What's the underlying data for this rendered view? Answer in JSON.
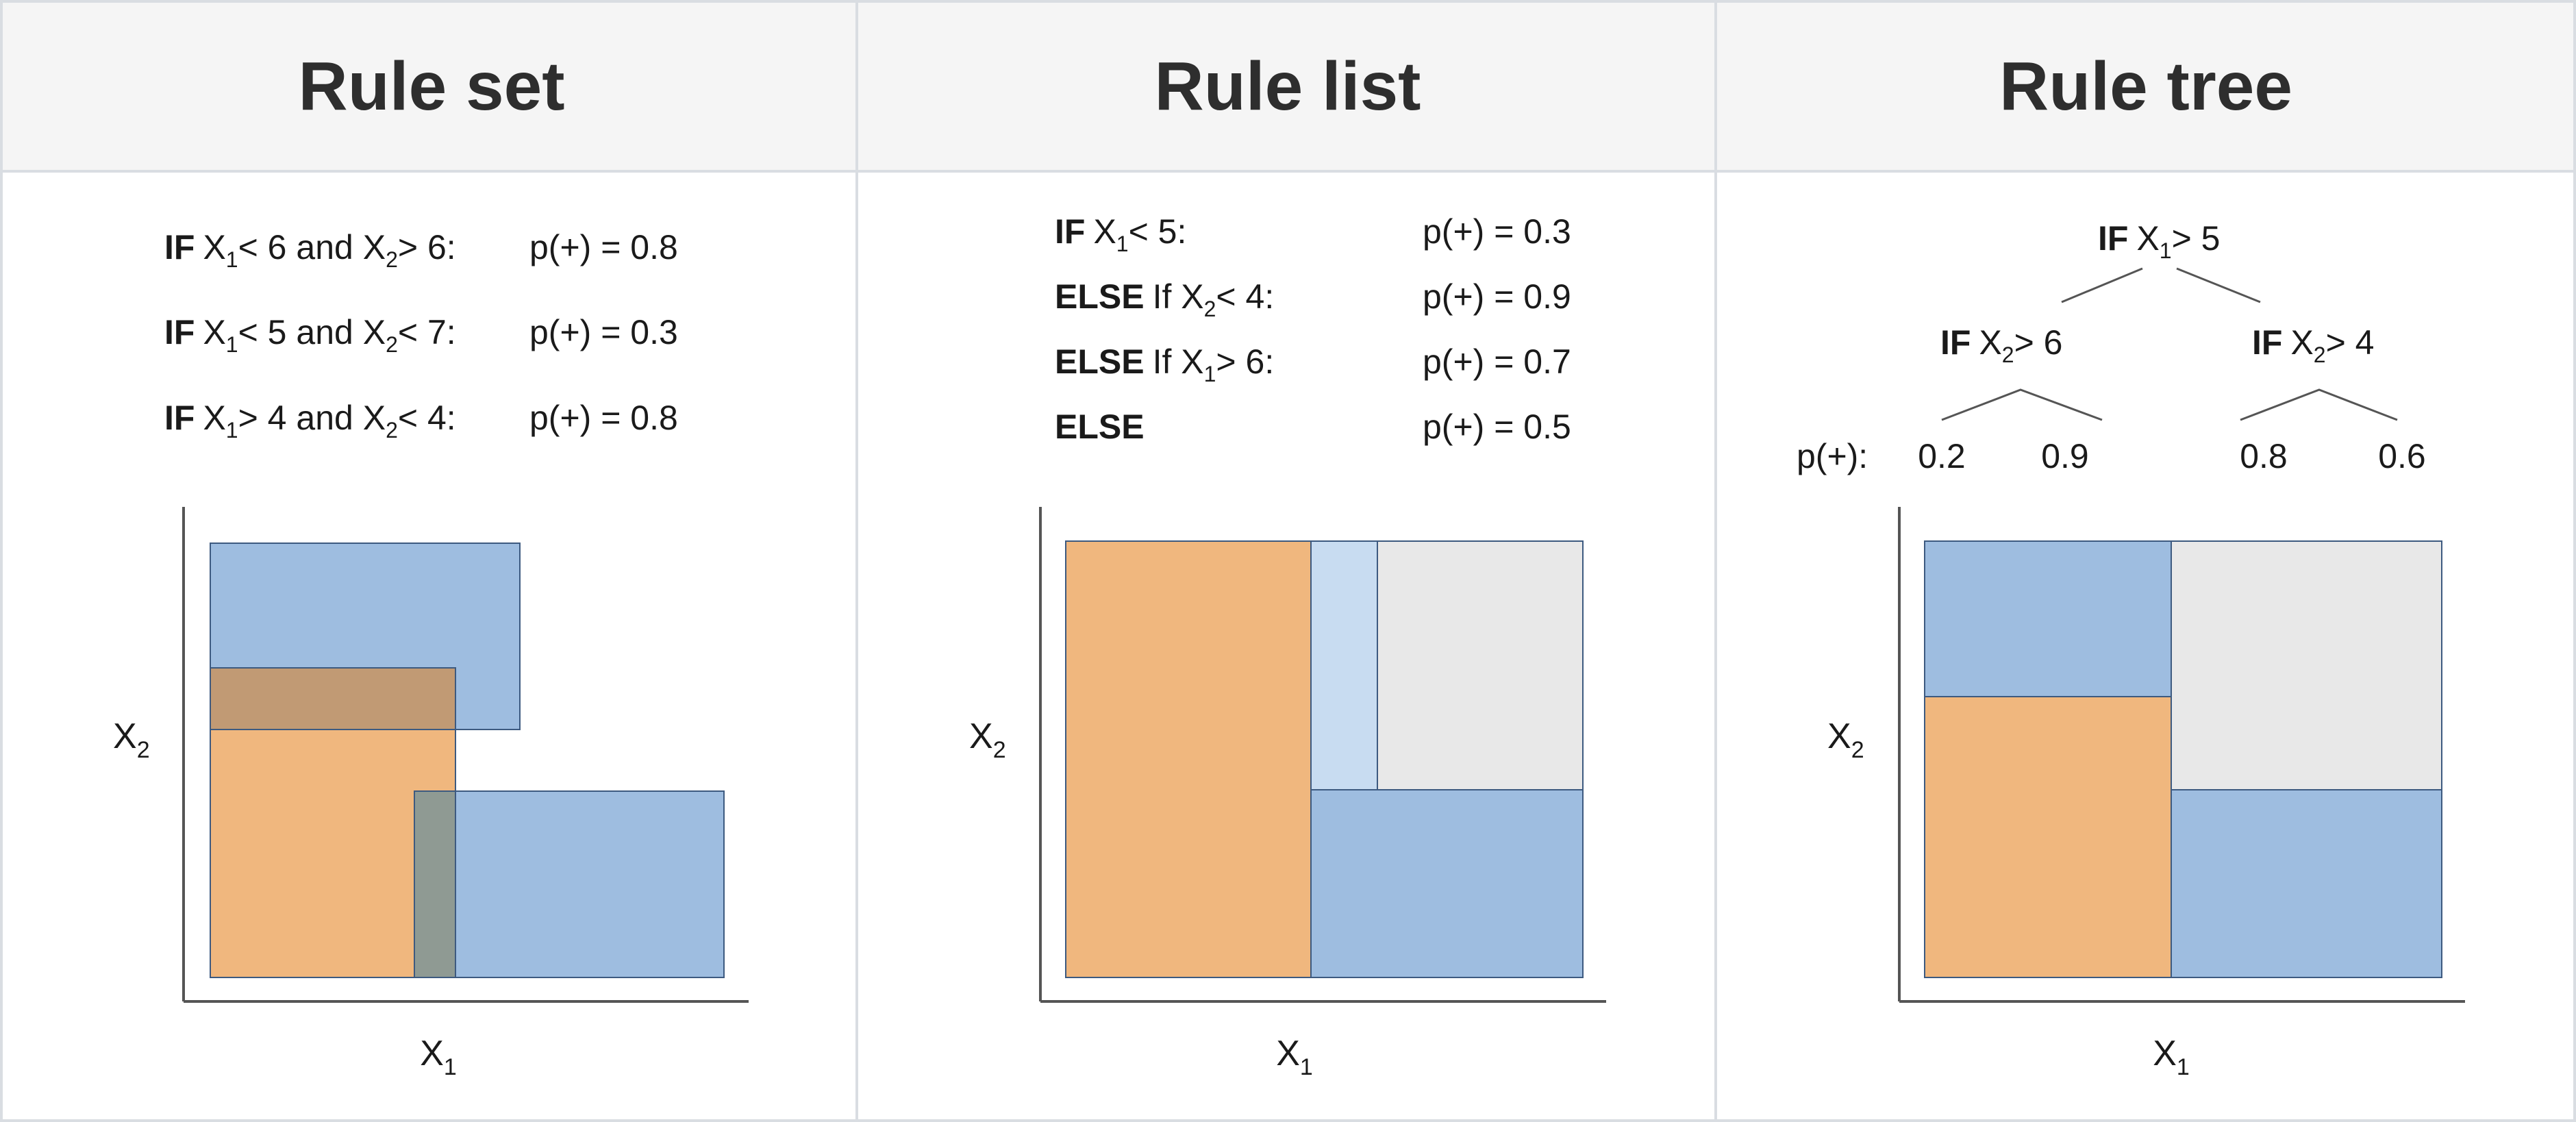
{
  "panels": [
    {
      "title": "Rule set",
      "rules": [
        {
          "kw": "IF",
          "v1": "X",
          "s1": "1",
          "op1": "< 6 and ",
          "v2": "X",
          "s2": "2",
          "op2": "> 6:",
          "prob": "p(+) = 0.8"
        },
        {
          "kw": "IF",
          "v1": "X",
          "s1": "1",
          "op1": "< 5 and ",
          "v2": "X",
          "s2": "2",
          "op2": "< 7:",
          "prob": "p(+) = 0.3"
        },
        {
          "kw": "IF",
          "v1": "X",
          "s1": "1",
          "op1": "> 4 and ",
          "v2": "X",
          "s2": "2",
          "op2": "< 4:",
          "prob": "p(+) = 0.8"
        }
      ],
      "x_label": {
        "v": "X",
        "sub": "1"
      },
      "y_label": {
        "v": "X",
        "sub": "2"
      }
    },
    {
      "title": "Rule list",
      "rules": [
        {
          "kw": "IF",
          "rest": "X",
          "sub": "1",
          "cond": "< 5:",
          "prob": "p(+) = 0.3"
        },
        {
          "kw": "ELSE",
          "rest": "If X",
          "sub": "2",
          "cond": "< 4:",
          "prob": "p(+) = 0.9"
        },
        {
          "kw": "ELSE",
          "rest": "If X",
          "sub": "1",
          "cond": "> 6:",
          "prob": "p(+) = 0.7"
        },
        {
          "kw": "ELSE",
          "rest": "",
          "sub": "",
          "cond": "",
          "prob": "p(+) = 0.5"
        }
      ],
      "x_label": {
        "v": "X",
        "sub": "1"
      },
      "y_label": {
        "v": "X",
        "sub": "2"
      }
    },
    {
      "title": "Rule tree",
      "root": {
        "kw": "IF",
        "v": "X",
        "sub": "1",
        "cond": "> 5"
      },
      "left": {
        "kw": "IF",
        "v": "X",
        "sub": "2",
        "cond": "> 6"
      },
      "right": {
        "kw": "IF",
        "v": "X",
        "sub": "2",
        "cond": "> 4"
      },
      "prob_label": "p(+):",
      "leaves": [
        "0.2",
        "0.9",
        "0.8",
        "0.6"
      ],
      "x_label": {
        "v": "X",
        "sub": "1"
      },
      "y_label": {
        "v": "X",
        "sub": "2"
      }
    }
  ],
  "colors": {
    "orange": "#f0b77e",
    "blue": "#9ebde0",
    "light_blue": "#c8dcf1",
    "gray": "#e8e8e8",
    "brown_overlap": "#c19a74",
    "gray_overlap": "#8f9a93",
    "header_bg": "#f5f5f5",
    "border": "#d9dde2",
    "axis": "#555555",
    "rect_border": "#3d5a80"
  }
}
